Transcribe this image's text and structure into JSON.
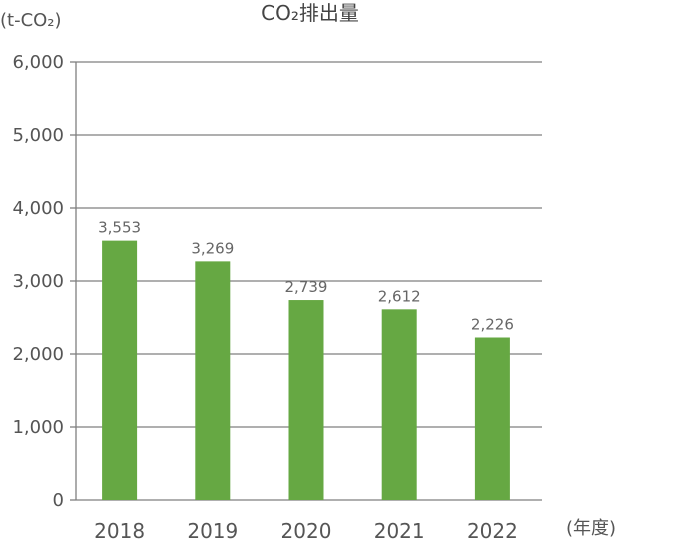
{
  "chart_data": {
    "type": "bar",
    "title": "CO₂排出量",
    "ylabel": "(t-CO₂)",
    "xlabel": "(年度)",
    "categories": [
      "2018",
      "2019",
      "2020",
      "2021",
      "2022"
    ],
    "values": [
      3553,
      3269,
      2739,
      2612,
      2226
    ],
    "value_labels": [
      "3,553",
      "3,269",
      "2,739",
      "2,612",
      "2,226"
    ],
    "yticks": [
      0,
      1000,
      2000,
      3000,
      4000,
      5000,
      6000
    ],
    "ytick_labels": [
      "0",
      "1,000",
      "2,000",
      "3,000",
      "4,000",
      "5,000",
      "6,000"
    ],
    "ylim": [
      0,
      6000
    ],
    "grid": true,
    "bar_color": "#66a843",
    "grid_color": "#7f7f7f"
  }
}
